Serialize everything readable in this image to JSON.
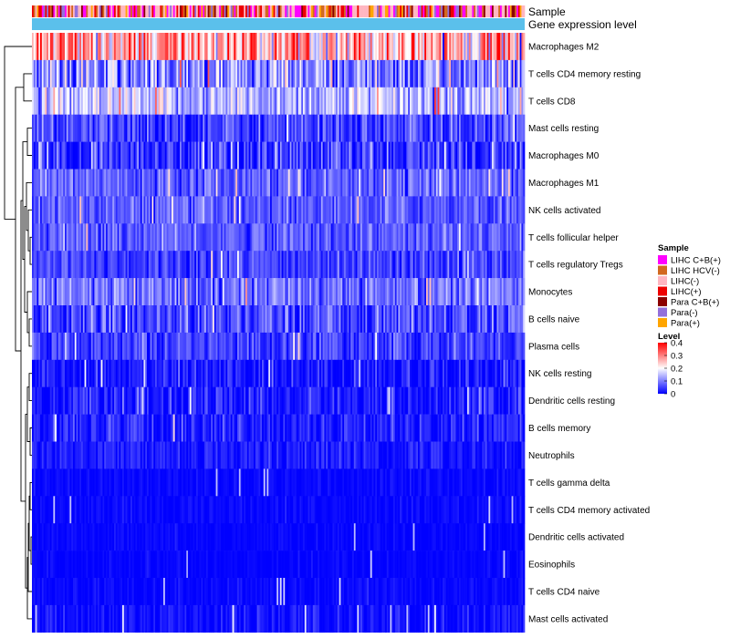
{
  "chart_data": {
    "type": "heatmap",
    "title": "",
    "column_annotations": [
      {
        "name": "Sample"
      },
      {
        "name": "Gene expression level"
      }
    ],
    "rows": [
      {
        "label": "Macrophages M2",
        "mean": 0.27,
        "sd": 0.08
      },
      {
        "label": "T cells CD4 memory resting",
        "mean": 0.1,
        "sd": 0.07
      },
      {
        "label": "T cells CD8",
        "mean": 0.14,
        "sd": 0.05
      },
      {
        "label": "Mast cells resting",
        "mean": 0.05,
        "sd": 0.04
      },
      {
        "label": "Macrophages M0",
        "mean": 0.04,
        "sd": 0.05
      },
      {
        "label": "Macrophages M1",
        "mean": 0.08,
        "sd": 0.03
      },
      {
        "label": "NK cells activated",
        "mean": 0.07,
        "sd": 0.03
      },
      {
        "label": "T cells follicular helper",
        "mean": 0.07,
        "sd": 0.03
      },
      {
        "label": "T cells regulatory  Tregs",
        "mean": 0.05,
        "sd": 0.03
      },
      {
        "label": "Monocytes",
        "mean": 0.09,
        "sd": 0.04
      },
      {
        "label": "B cells naive",
        "mean": 0.06,
        "sd": 0.04
      },
      {
        "label": "Plasma cells",
        "mean": 0.05,
        "sd": 0.03
      },
      {
        "label": "NK cells resting",
        "mean": 0.02,
        "sd": 0.03
      },
      {
        "label": "Dendritic cells resting",
        "mean": 0.02,
        "sd": 0.03
      },
      {
        "label": "B cells memory",
        "mean": 0.02,
        "sd": 0.03
      },
      {
        "label": "Neutrophils",
        "mean": 0.02,
        "sd": 0.02
      },
      {
        "label": "T cells gamma delta",
        "mean": 0.005,
        "sd": 0.01
      },
      {
        "label": "T cells CD4 memory activated",
        "mean": 0.005,
        "sd": 0.01
      },
      {
        "label": "Dendritic cells activated",
        "mean": 0.003,
        "sd": 0.008
      },
      {
        "label": "Eosinophils",
        "mean": 0.003,
        "sd": 0.008
      },
      {
        "label": "T cells CD4 naive",
        "mean": 0.005,
        "sd": 0.01
      },
      {
        "label": "Mast cells activated",
        "mean": 0.01,
        "sd": 0.02
      }
    ],
    "n_columns": 300,
    "sample_legend": {
      "title": "Sample",
      "entries": [
        {
          "label": "LIHC C+B(+)",
          "color": "#ff00ff",
          "weight": 0.22
        },
        {
          "label": "LIHC HCV(-)",
          "color": "#d2691e",
          "weight": 0.12
        },
        {
          "label": "LIHC(-)",
          "color": "#ffb6c1",
          "weight": 0.3
        },
        {
          "label": "LIHC(+)",
          "color": "#ee0000",
          "weight": 0.12
        },
        {
          "label": "Para C+B(+)",
          "color": "#8b0000",
          "weight": 0.06
        },
        {
          "label": "Para(-)",
          "color": "#9370db",
          "weight": 0.1
        },
        {
          "label": "Para(+)",
          "color": "#ffa500",
          "weight": 0.08
        }
      ]
    },
    "gene_expression_color": "#5bc0eb",
    "level_legend": {
      "title": "Level",
      "range": [
        0,
        0.4
      ],
      "ticks": [
        "0.4",
        "0.3",
        "0.2",
        "0.1",
        "0"
      ],
      "tick_values": [
        0.4,
        0.3,
        0.2,
        0.1,
        0
      ],
      "color_stops": [
        "#0000ff",
        "#ffffff",
        "#ff0000"
      ]
    }
  }
}
